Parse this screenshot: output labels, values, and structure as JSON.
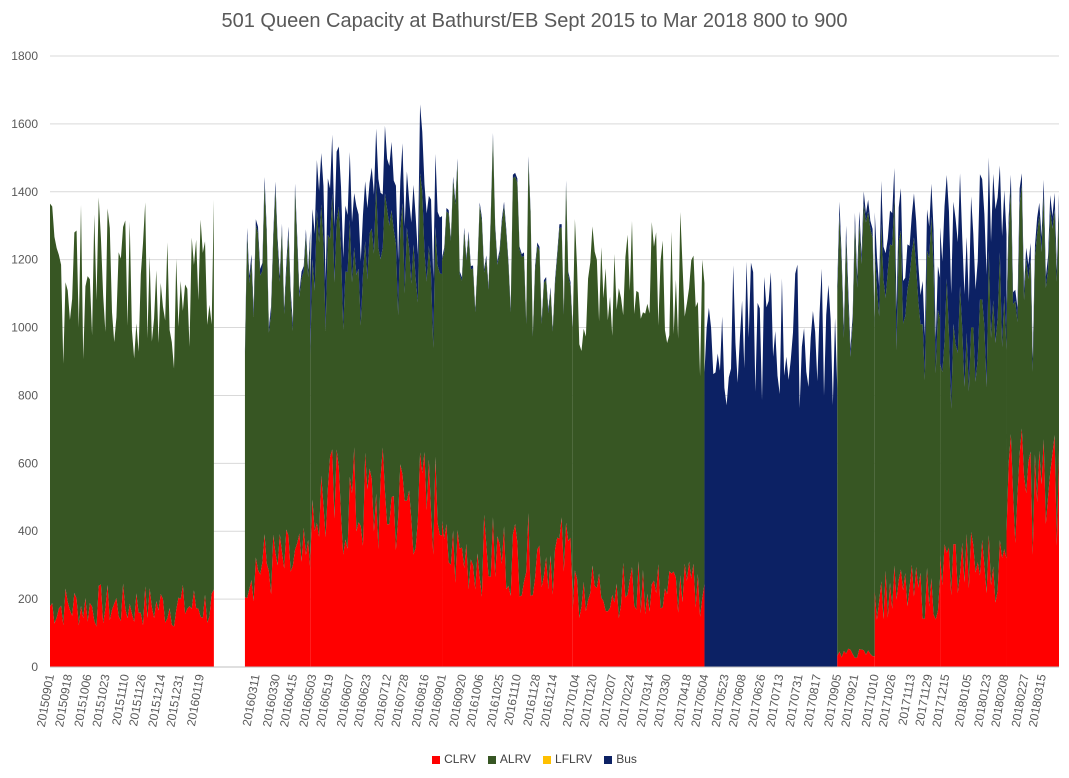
{
  "chart_data": {
    "type": "area",
    "stacked": true,
    "title": "501 Queen Capacity at Bathurst/EB Sept 2015 to Mar 2018 800 to 900",
    "xlabel": "",
    "ylabel": "",
    "ylim": [
      0,
      1800
    ],
    "y_ticks": [
      0,
      200,
      400,
      600,
      800,
      1000,
      1200,
      1400,
      1600,
      1800
    ],
    "grid": true,
    "legend_position": "bottom",
    "x_tick_labels": [
      "20150901",
      "20150918",
      "20151006",
      "20151023",
      "20151110",
      "20151126",
      "20151214",
      "20151231",
      "20160119",
      "20160311",
      "20160330",
      "20160415",
      "20160503",
      "20160519",
      "20160607",
      "20160623",
      "20160712",
      "20160728",
      "20160816",
      "20160901",
      "20160920",
      "20161006",
      "20161025",
      "20161110",
      "20161128",
      "20161214",
      "20170104",
      "20170120",
      "20170207",
      "20170224",
      "20170314",
      "20170330",
      "20170418",
      "20170504",
      "20170523",
      "20170608",
      "20170626",
      "20170713",
      "20170731",
      "20170817",
      "20170905",
      "20170921",
      "20171010",
      "20171026",
      "20171113",
      "20171129",
      "20171215",
      "20180105",
      "20180123",
      "20180208",
      "20180227",
      "20180315"
    ],
    "segments": [
      {
        "x": [
          "20150901",
          "20160201"
        ],
        "CLRV": 180,
        "ALRV": 980,
        "LFLRV": 0,
        "Bus": 0
      },
      {
        "x": [
          "20160301",
          "20160501"
        ],
        "CLRV": 300,
        "ALRV": 880,
        "LFLRV": 0,
        "Bus": 20
      },
      {
        "x": [
          "20160501",
          "20160901"
        ],
        "CLRV": 480,
        "ALRV": 760,
        "LFLRV": 0,
        "Bus": 180
      },
      {
        "x": [
          "20160901",
          "20170101"
        ],
        "CLRV": 330,
        "ALRV": 920,
        "LFLRV": 0,
        "Bus": 10
      },
      {
        "x": [
          "20170101",
          "20170504"
        ],
        "CLRV": 230,
        "ALRV": 890,
        "LFLRV": 0,
        "Bus": 0
      },
      {
        "x": [
          "20170504",
          "20170905"
        ],
        "CLRV": 0,
        "ALRV": 0,
        "LFLRV": 0,
        "Bus": 980
      },
      {
        "x": [
          "20170905",
          "20171010"
        ],
        "CLRV": 40,
        "ALRV": 1100,
        "LFLRV": 0,
        "Bus": 30
      },
      {
        "x": [
          "20171010",
          "20171210"
        ],
        "CLRV": 220,
        "ALRV": 900,
        "LFLRV": 0,
        "Bus": 110
      },
      {
        "x": [
          "20171210",
          "20180210"
        ],
        "CLRV": 300,
        "ALRV": 700,
        "LFLRV": 0,
        "Bus": 330
      },
      {
        "x": [
          "20180210",
          "20180331"
        ],
        "CLRV": 520,
        "ALRV": 650,
        "LFLRV": 0,
        "Bus": 40
      }
    ],
    "series": [
      {
        "name": "CLRV",
        "color": "#ff0000"
      },
      {
        "name": "ALRV",
        "color": "#375623"
      },
      {
        "name": "LFLRV",
        "color": "#ffc000"
      },
      {
        "name": "Bus",
        "color": "#0c2164"
      }
    ]
  }
}
